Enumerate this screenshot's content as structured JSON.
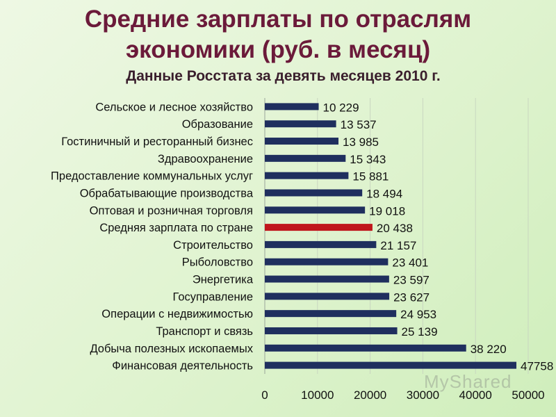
{
  "title_line1": "Средние зарплаты по отраслям",
  "title_line2": "экономики (руб. в месяц)",
  "subtitle": "Данные Росстата  за девять месяцев 2010 г.",
  "watermark": "MyShared",
  "colors": {
    "bar": "#1f2f5e",
    "highlight": "#c0161c",
    "title": "#6b1a3a"
  },
  "chart_data": {
    "type": "bar",
    "orientation": "horizontal",
    "title": "Средние зарплаты по отраслям экономики (руб. в месяц)",
    "subtitle": "Данные Росстата  за девять месяцев 2010 г.",
    "xlim": [
      0,
      50000
    ],
    "xticks": [
      0,
      10000,
      20000,
      30000,
      40000,
      50000
    ],
    "xtick_labels": [
      "0",
      "10000",
      "20000",
      "30000",
      "40000",
      "50000"
    ],
    "grid": true,
    "highlight_index": 7,
    "categories": [
      "Сельское и лесное хозяйство",
      "Образование",
      "Гостиничный и ресторанный бизнес",
      "Здравоохранение",
      "Предоставление коммунальных услуг",
      "Обрабатывающие производства",
      "Оптовая и розничная торговля",
      "Средняя зарплата по стране",
      "Строительство",
      "Рыболовство",
      "Энергетика",
      "Госуправление",
      "Операции с недвижимостью",
      "Транспорт и связь",
      "Добыча полезных ископаемых",
      "Финансовая деятельность"
    ],
    "values": [
      10229,
      13537,
      13985,
      15343,
      15881,
      18494,
      19018,
      20438,
      21157,
      23401,
      23597,
      23627,
      24953,
      25139,
      38220,
      47758
    ],
    "value_labels": [
      "10 229",
      "13 537",
      "13 985",
      "15 343",
      "15 881",
      "18 494",
      "19 018",
      "20 438",
      "21 157",
      "23 401",
      "23 597",
      "23 627",
      "24 953",
      "25 139",
      "38 220",
      "47758"
    ]
  }
}
